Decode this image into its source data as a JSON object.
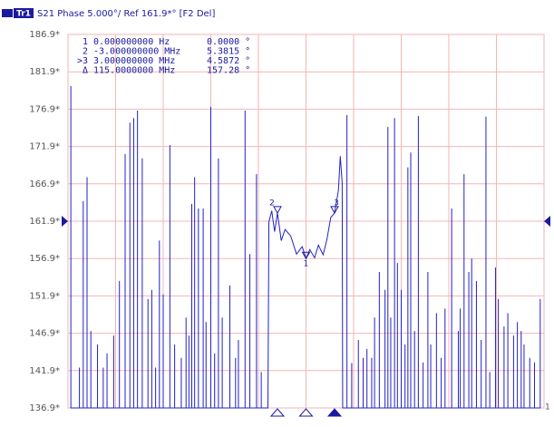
{
  "chart_data": {
    "type": "line",
    "header": {
      "trace": "Tr1",
      "title": "S21 Phase 5.000°/ Ref 161.9*° [F2 Del]"
    },
    "ylim": [
      136.9,
      186.9
    ],
    "yticks": [
      {
        "value": 186.9,
        "label": "186.9*"
      },
      {
        "value": 181.9,
        "label": "181.9*"
      },
      {
        "value": 176.9,
        "label": "176.9*"
      },
      {
        "value": 171.9,
        "label": "171.9*"
      },
      {
        "value": 166.9,
        "label": "166.9*"
      },
      {
        "value": 161.9,
        "label": "161.9*"
      },
      {
        "value": 156.9,
        "label": "156.9*"
      },
      {
        "value": 151.9,
        "label": "151.9*"
      },
      {
        "value": 146.9,
        "label": "146.9*"
      },
      {
        "value": 141.9,
        "label": "141.9*"
      },
      {
        "value": 136.9,
        "label": "136.9*"
      }
    ],
    "xlim": [
      -25,
      25
    ],
    "xticks": [
      -25,
      -20,
      -15,
      -10,
      -5,
      0,
      5,
      10,
      15,
      20,
      25
    ],
    "grid": true,
    "reference": 161.9,
    "channel": "1",
    "series": [
      {
        "color": "#2222c8",
        "x": [
          -24.7,
          -24.7,
          -24.7,
          -23.8,
          -23.8,
          -23.8,
          -23.4,
          -23.4,
          -23.4,
          -23.0,
          -23.0,
          -23.0,
          -22.6,
          -22.6,
          -22.6,
          -21.9,
          -21.9,
          -21.9,
          -21.3,
          -21.3,
          -21.3,
          -20.9,
          -20.9,
          -20.9,
          -20.2,
          -20.2,
          -20.2,
          -19.6,
          -19.6,
          -19.6,
          -19.0,
          -19.0,
          -19.0,
          -18.5,
          -18.5,
          -18.5,
          -18.1,
          -18.1,
          -18.1,
          -17.7,
          -17.7,
          -17.7,
          -17.2,
          -17.2,
          -17.2,
          -16.6,
          -16.6,
          -16.6,
          -16.2,
          -16.2,
          -16.2,
          -15.8,
          -15.8,
          -15.8,
          -15.4,
          -15.4,
          -15.4,
          -15.0,
          -15.0,
          -15.0,
          -14.3,
          -14.3,
          -14.3,
          -13.8,
          -13.8,
          -13.8,
          -13.1,
          -13.1,
          -13.1,
          -12.6,
          -12.6,
          -12.6,
          -12.3,
          -12.3,
          -12.3,
          -12.0,
          -12.0,
          -12.0,
          -11.7,
          -11.7,
          -11.7,
          -11.3,
          -11.3,
          -11.3,
          -10.8,
          -10.8,
          -10.8,
          -10.5,
          -10.5,
          -10.5,
          -10.0,
          -10.0,
          -10.0,
          -9.6,
          -9.6,
          -9.6,
          -9.2,
          -9.2,
          -9.2,
          -8.8,
          -8.8,
          -8.8,
          -8.0,
          -8.0,
          -8.0,
          -7.4,
          -7.4,
          -7.4,
          -7.1,
          -7.1,
          -7.1,
          -6.4,
          -6.4,
          -6.4,
          -5.9,
          -5.9,
          -5.9,
          -5.2,
          -5.2,
          -5.2,
          -4.7,
          -4.7,
          -4.7,
          -4.0,
          -3.9,
          -3.6,
          -3.3,
          -3.0,
          -2.6,
          -2.2,
          -1.6,
          -1.0,
          -0.4,
          0.0,
          0.4,
          0.9,
          1.3,
          1.8,
          2.2,
          2.6,
          3.0,
          3.4,
          3.6,
          3.8,
          3.85,
          4.3,
          4.3,
          4.3,
          4.8,
          4.8,
          4.8,
          5.5,
          5.5,
          5.5,
          6.0,
          6.0,
          6.0,
          6.4,
          6.4,
          6.4,
          6.9,
          6.9,
          6.9,
          7.2,
          7.2,
          7.2,
          7.7,
          7.7,
          7.7,
          8.3,
          8.3,
          8.3,
          8.6,
          8.6,
          8.6,
          8.9,
          8.9,
          8.9,
          9.3,
          9.3,
          9.3,
          9.6,
          9.6,
          9.6,
          10.0,
          10.0,
          10.0,
          10.4,
          10.4,
          10.4,
          10.7,
          10.7,
          10.7,
          11.0,
          11.0,
          11.0,
          11.4,
          11.4,
          11.4,
          11.8,
          11.8,
          11.8,
          12.3,
          12.3,
          12.3,
          12.8,
          12.8,
          12.8,
          13.1,
          13.1,
          13.1,
          13.7,
          13.7,
          13.7,
          14.2,
          14.2,
          14.2,
          14.6,
          14.6,
          14.6,
          15.3,
          15.3,
          15.3,
          16.0,
          16.0,
          16.0,
          16.2,
          16.2,
          16.2,
          16.6,
          16.6,
          16.6,
          17.1,
          17.1,
          17.1,
          17.4,
          17.4,
          17.4,
          17.9,
          17.9,
          17.9,
          18.4,
          18.4,
          18.4,
          18.9,
          18.9,
          18.9,
          19.3,
          19.3,
          19.3,
          19.9,
          19.9,
          19.9,
          20.2,
          20.2,
          20.2,
          20.8,
          20.8,
          20.8,
          21.2,
          21.2,
          21.2,
          21.8,
          21.8,
          21.8,
          22.2,
          22.2,
          22.2,
          22.6,
          22.6,
          22.6,
          22.9,
          22.9,
          22.9,
          23.5,
          23.5,
          23.5,
          24.0,
          24.0,
          24.0,
          24.6,
          24.6,
          24.6
        ],
        "values": [
          136.9,
          180.0,
          136.9,
          136.9,
          142.3,
          136.9,
          136.9,
          164.6,
          136.9,
          136.9,
          167.8,
          136.9,
          136.9,
          147.2,
          136.9,
          136.9,
          145.4,
          136.9,
          136.9,
          142.3,
          136.9,
          136.9,
          144.2,
          136.9,
          136.9,
          146.6,
          136.9,
          136.9,
          153.9,
          136.9,
          136.9,
          170.9,
          136.9,
          136.9,
          175.1,
          136.9,
          136.9,
          175.7,
          136.9,
          136.9,
          176.7,
          136.9,
          136.9,
          170.3,
          136.9,
          136.9,
          151.5,
          136.9,
          136.9,
          152.7,
          136.9,
          136.9,
          142.3,
          136.9,
          136.9,
          159.3,
          136.9,
          136.9,
          152.1,
          136.9,
          136.9,
          172.1,
          136.9,
          136.9,
          145.4,
          136.9,
          136.9,
          143.6,
          136.9,
          136.9,
          149.0,
          136.9,
          136.9,
          146.6,
          136.9,
          136.9,
          164.2,
          136.9,
          136.9,
          167.8,
          136.9,
          136.9,
          163.6,
          136.9,
          136.9,
          163.6,
          136.9,
          136.9,
          148.4,
          136.9,
          136.9,
          177.2,
          136.9,
          136.9,
          144.2,
          136.9,
          136.9,
          170.3,
          136.9,
          136.9,
          149.0,
          136.9,
          136.9,
          153.3,
          136.9,
          136.9,
          143.6,
          136.9,
          136.9,
          146.0,
          136.9,
          136.9,
          176.7,
          136.9,
          136.9,
          157.5,
          136.9,
          136.9,
          168.2,
          136.9,
          136.9,
          141.7,
          136.9,
          136.9,
          161.8,
          163.3,
          160.5,
          163.0,
          159.3,
          160.8,
          159.9,
          157.5,
          158.5,
          156.9,
          158.1,
          157.0,
          158.7,
          157.4,
          159.5,
          162.4,
          163.0,
          166.0,
          170.6,
          167.0,
          136.9,
          136.9,
          176.1,
          136.9,
          136.9,
          142.9,
          136.9,
          136.9,
          146.0,
          136.9,
          136.9,
          143.6,
          136.9,
          136.9,
          144.8,
          136.9,
          136.9,
          143.6,
          136.9,
          136.9,
          149.0,
          136.9,
          136.9,
          155.1,
          136.9,
          136.9,
          152.7,
          136.9,
          136.9,
          174.5,
          136.9,
          136.9,
          149.0,
          136.9,
          136.9,
          175.7,
          136.9,
          136.9,
          156.3,
          136.9,
          136.9,
          152.7,
          136.9,
          136.9,
          145.4,
          136.9,
          136.9,
          169.1,
          136.9,
          136.9,
          171.1,
          136.9,
          136.9,
          147.2,
          136.9,
          136.9,
          176.0,
          136.9,
          136.9,
          143.0,
          136.9,
          136.9,
          155.1,
          136.9,
          136.9,
          145.4,
          136.9,
          136.9,
          149.6,
          136.9,
          136.9,
          143.6,
          136.9,
          136.9,
          150.2,
          136.9,
          136.9,
          163.6,
          136.9,
          136.9,
          147.2,
          136.9,
          136.9,
          150.2,
          136.9,
          136.9,
          168.2,
          136.9,
          136.9,
          155.1,
          136.9,
          136.9,
          156.9,
          136.9,
          136.9,
          153.9,
          136.9,
          136.9,
          146.0,
          136.9,
          136.9,
          175.9,
          136.9,
          136.9,
          141.7,
          136.9,
          136.9,
          155.7,
          136.9,
          136.9,
          151.5,
          136.9,
          136.9,
          147.8,
          136.9,
          136.9,
          149.6,
          136.9,
          136.9,
          146.6,
          136.9,
          136.9,
          148.4,
          136.9,
          136.9,
          147.2,
          136.9,
          136.9,
          145.4,
          136.9,
          136.9,
          143.6,
          136.9,
          136.9,
          143.0,
          136.9,
          136.9,
          151.5,
          136.9
        ]
      }
    ],
    "markers": [
      {
        "label": "1",
        "x": 0,
        "value": 156.9,
        "active": false
      },
      {
        "label": "2",
        "x": -3,
        "value": 163.0,
        "active": false
      },
      {
        "label": "3",
        "x": 3,
        "value": 163.0,
        "active": true
      }
    ],
    "marker_table": [
      [
        "1",
        "0.000000000 Hz",
        "0.0000 °"
      ],
      [
        "2",
        "-3.000000000 MHz",
        "5.3815 °"
      ],
      [
        ">3",
        "3.000000000 MHz",
        "4.5872 °"
      ],
      [
        "Δ",
        "115.0000000 MHz",
        "157.28 °"
      ]
    ]
  }
}
